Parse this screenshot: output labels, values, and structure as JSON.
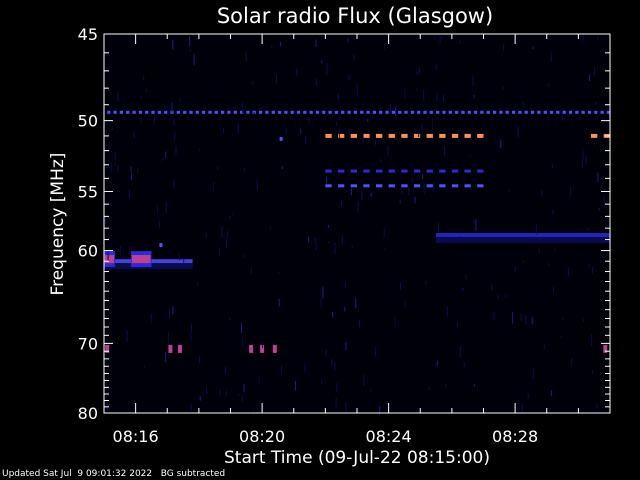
{
  "chart_data": {
    "type": "heatmap",
    "title": "Solar radio Flux (Glasgow)",
    "xlabel": "Start Time (09-Jul-22 08:15:00)",
    "ylabel": "Frequency [MHz]",
    "x_range_minutes": [
      0,
      16
    ],
    "y_range_mhz": [
      45,
      80
    ],
    "x_ticks": [
      {
        "minute": 1,
        "label": "08:16"
      },
      {
        "minute": 5,
        "label": "08:20"
      },
      {
        "minute": 9,
        "label": "08:24"
      },
      {
        "minute": 13,
        "label": "08:28"
      }
    ],
    "y_ticks": [
      {
        "mhz": 45,
        "label": "45"
      },
      {
        "mhz": 50,
        "label": "50"
      },
      {
        "mhz": 55,
        "label": "55"
      },
      {
        "mhz": 60,
        "label": "60"
      },
      {
        "mhz": 70,
        "label": "70"
      },
      {
        "mhz": 80,
        "label": "80"
      }
    ],
    "y_minor_ticks": [
      46,
      47,
      48,
      49,
      51,
      52,
      53,
      54,
      56,
      57,
      58,
      59,
      61,
      62,
      63,
      64,
      65,
      66,
      67,
      68,
      69,
      71,
      72,
      73,
      74,
      75,
      76,
      77,
      78,
      79
    ],
    "colors": {
      "background": "#000000",
      "low": "#0c0c60",
      "medium": "#2a2ad8",
      "high": "#5050ff",
      "peak": "#c04090",
      "hot": "#ff9050"
    },
    "features": [
      {
        "kind": "dashed",
        "freq_mhz": 49.5,
        "t_start": 0.1,
        "t_end": 15.9,
        "period": 0.2,
        "level": "high"
      },
      {
        "kind": "dashed",
        "freq_mhz": 51,
        "t_start": 7.0,
        "t_end": 12.2,
        "period": 0.4,
        "level": "hot"
      },
      {
        "kind": "dashed",
        "freq_mhz": 51,
        "t_start": 15.4,
        "t_end": 15.9,
        "period": 0.4,
        "level": "hot"
      },
      {
        "kind": "dashed",
        "freq_mhz": 53.5,
        "t_start": 7.0,
        "t_end": 12.2,
        "period": 0.4,
        "level": "medium"
      },
      {
        "kind": "dashed",
        "freq_mhz": 54.6,
        "t_start": 7.0,
        "t_end": 12.2,
        "period": 0.4,
        "level": "high"
      },
      {
        "kind": "band",
        "freq_mhz": 58.6,
        "t_start": 10.5,
        "t_end": 16.0,
        "level": "medium"
      },
      {
        "kind": "band",
        "freq_mhz": 61.0,
        "t_start": 0.0,
        "t_end": 2.8,
        "level": "high"
      },
      {
        "kind": "blob",
        "freq_mhz": 60.8,
        "t_start": 0.0,
        "t_end": 0.35,
        "level": "peak"
      },
      {
        "kind": "blob",
        "freq_mhz": 60.8,
        "t_start": 0.85,
        "t_end": 1.5,
        "level": "peak"
      },
      {
        "kind": "blob",
        "freq_mhz": 70.7,
        "t": 0.1,
        "level": "peak"
      },
      {
        "kind": "blob",
        "freq_mhz": 70.7,
        "t": 2.1,
        "level": "peak"
      },
      {
        "kind": "blob",
        "freq_mhz": 70.7,
        "t": 2.4,
        "level": "peak"
      },
      {
        "kind": "blob",
        "freq_mhz": 70.7,
        "t": 4.65,
        "level": "peak"
      },
      {
        "kind": "blob",
        "freq_mhz": 70.7,
        "t": 5.0,
        "level": "peak"
      },
      {
        "kind": "blob",
        "freq_mhz": 70.7,
        "t": 5.4,
        "level": "peak"
      },
      {
        "kind": "blob",
        "freq_mhz": 70.7,
        "t": 15.85,
        "level": "peak"
      },
      {
        "kind": "dot",
        "freq_mhz": 51.2,
        "t": 5.6,
        "level": "high"
      },
      {
        "kind": "dot",
        "freq_mhz": 59.5,
        "t": 1.8,
        "level": "high"
      }
    ]
  },
  "footer": "Updated Sat Jul  9 09:01:32 2022   BG subtracted"
}
